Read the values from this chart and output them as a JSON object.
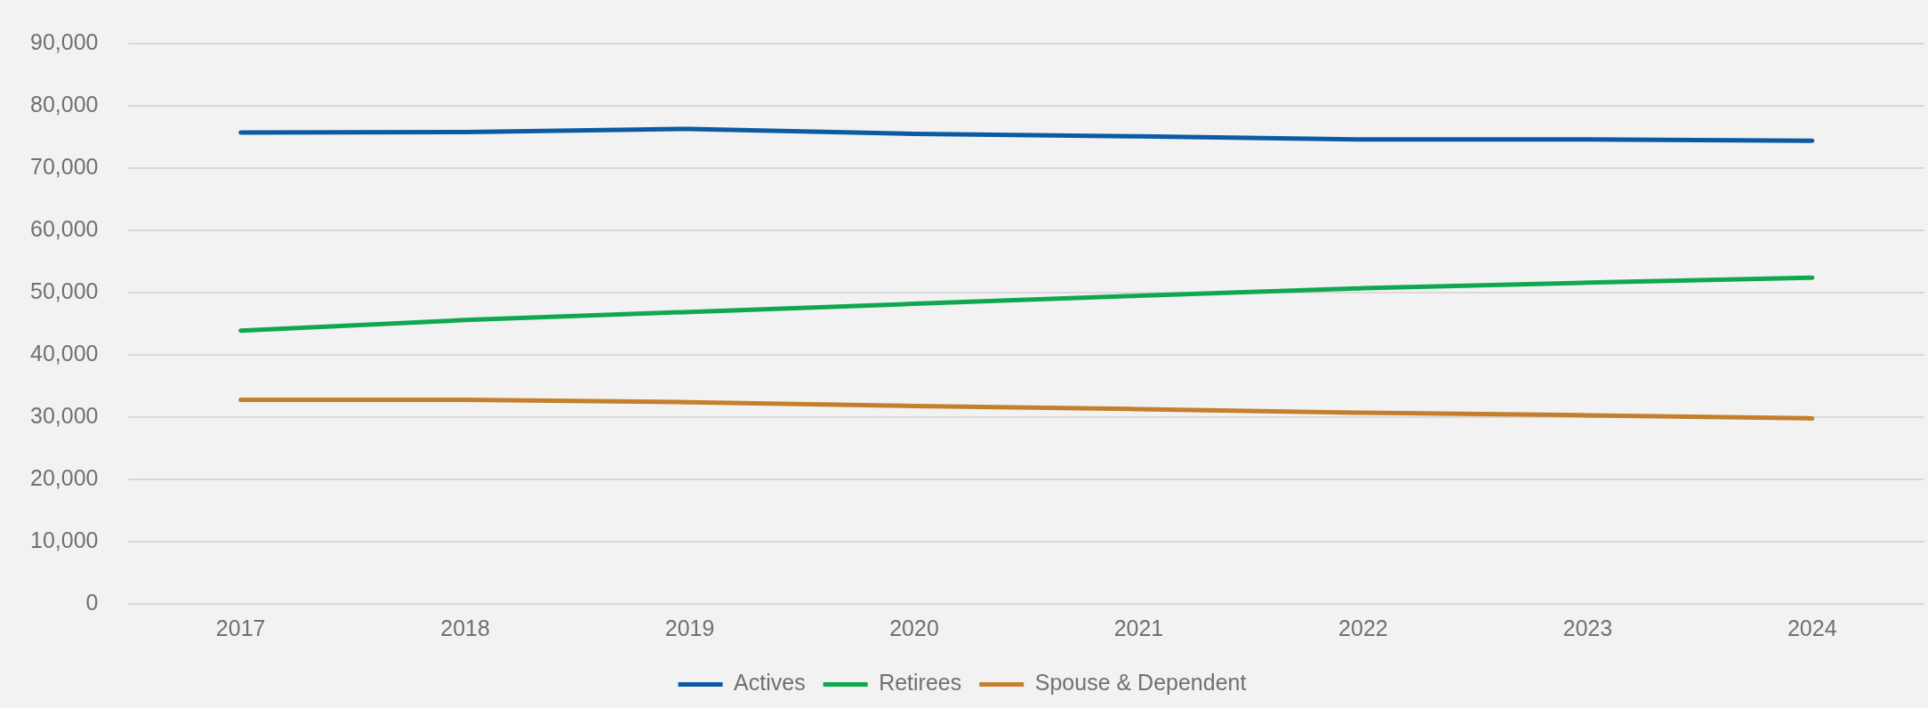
{
  "chart_data": {
    "type": "line",
    "categories": [
      "2017",
      "2018",
      "2019",
      "2020",
      "2021",
      "2022",
      "2023",
      "2024"
    ],
    "series": [
      {
        "name": "Actives",
        "color": "#0b5aa3",
        "values": [
          75700,
          75800,
          76300,
          75500,
          75100,
          74600,
          74600,
          74400
        ]
      },
      {
        "name": "Retirees",
        "color": "#0fa84f",
        "values": [
          43900,
          45600,
          46900,
          48200,
          49500,
          50700,
          51600,
          52400
        ]
      },
      {
        "name": "Spouse & Dependent",
        "color": "#c47f2c",
        "values": [
          32800,
          32800,
          32400,
          31800,
          31300,
          30700,
          30300,
          29800
        ]
      }
    ],
    "ylim": [
      0,
      90000
    ],
    "yticks": [
      0,
      {
        "value": 10000,
        "label": "10,000"
      },
      {
        "value": 20000,
        "label": "20,000"
      },
      {
        "value": 30000,
        "label": "30,000"
      },
      {
        "value": 40000,
        "label": "40,000"
      },
      {
        "value": 50000,
        "label": "50,000"
      },
      {
        "value": 60000,
        "label": "60,000"
      },
      {
        "value": 70000,
        "label": "70,000"
      },
      {
        "value": 80000,
        "label": "80,000"
      },
      {
        "value": 90000,
        "label": "90,000"
      }
    ],
    "grid": "y",
    "legend": "bottom",
    "marker": "none",
    "line_style": "solid"
  }
}
